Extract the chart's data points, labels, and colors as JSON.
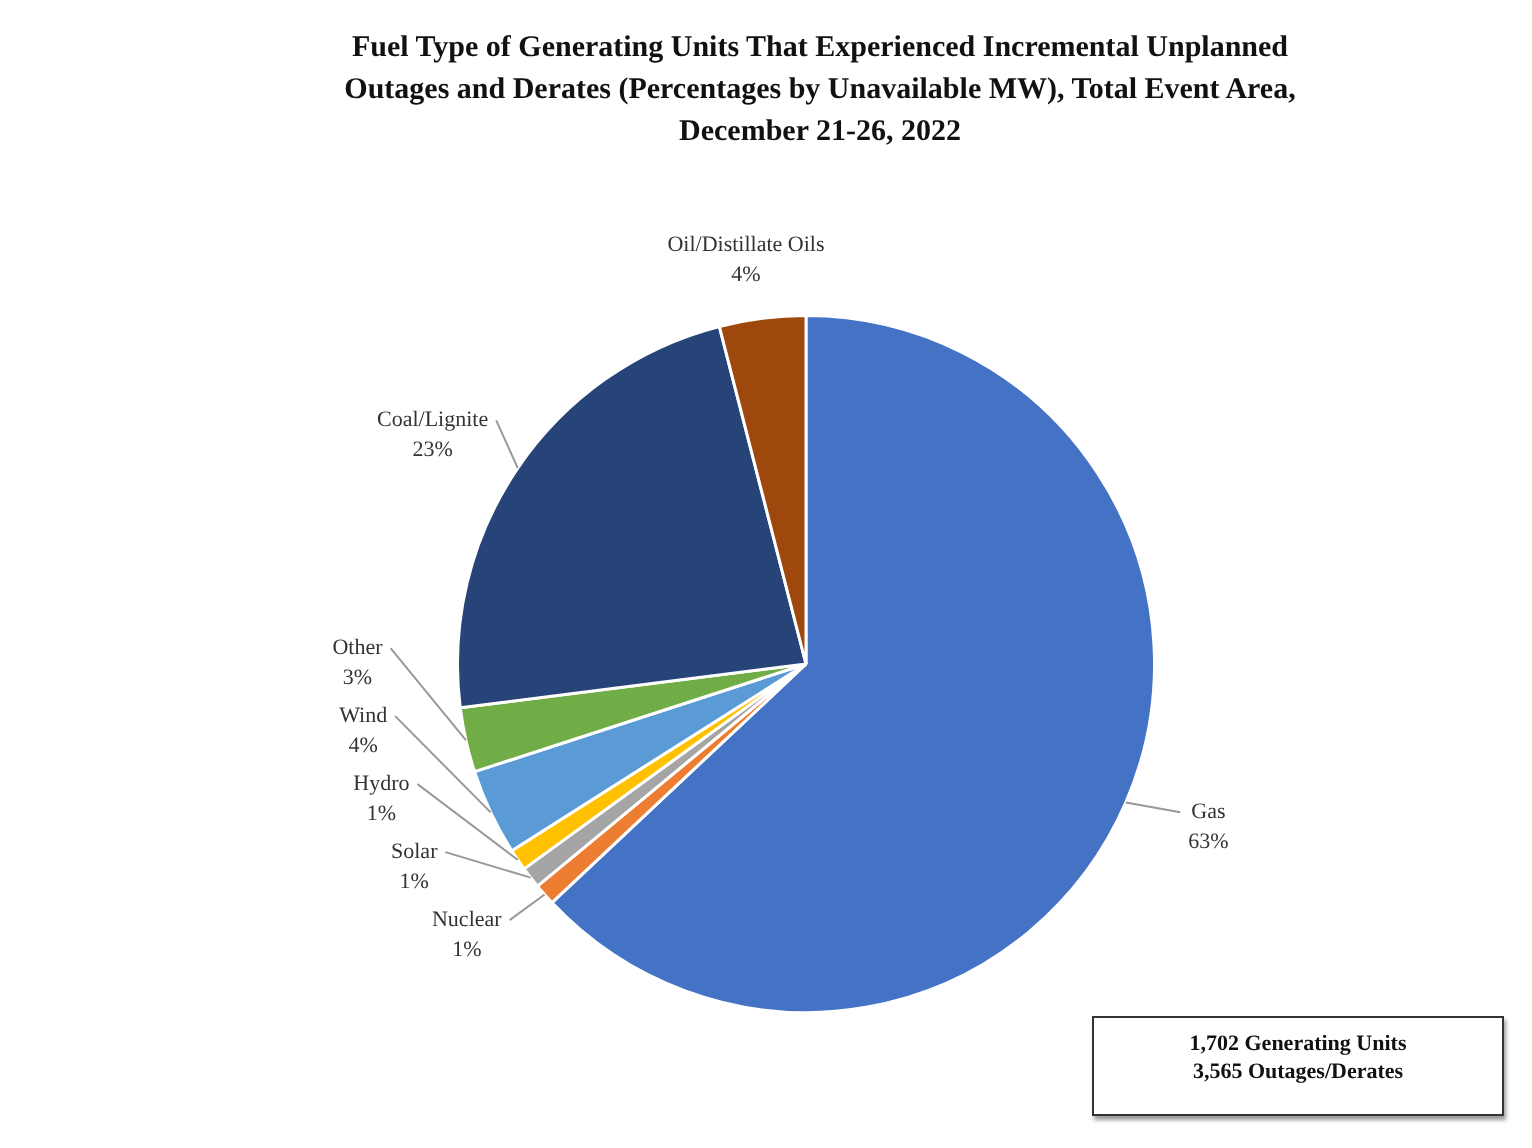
{
  "chart_data": {
    "type": "pie",
    "title": "Fuel Type of Generating Units That Experienced Incremental Unplanned Outages and Derates (Percentages by Unavailable MW), Total Event Area, December 21-26, 2022",
    "categories": [
      "Gas",
      "Nuclear",
      "Solar",
      "Hydro",
      "Wind",
      "Other",
      "Coal/Lignite",
      "Oil/Distillate Oils"
    ],
    "values": [
      63,
      1,
      1,
      1,
      4,
      3,
      23,
      4
    ],
    "value_labels": [
      "63%",
      "1%",
      "1%",
      "1%",
      "4%",
      "3%",
      "23%",
      "4%"
    ],
    "colors": [
      "#4472c4",
      "#ed7d31",
      "#a5a5a5",
      "#ffc000",
      "#5b9bd5",
      "#70ad47",
      "#264478",
      "#9e480e"
    ],
    "annotations": [
      "1,702 Generating Units\n3,565 Outages/Derates"
    ],
    "legend": false
  }
}
